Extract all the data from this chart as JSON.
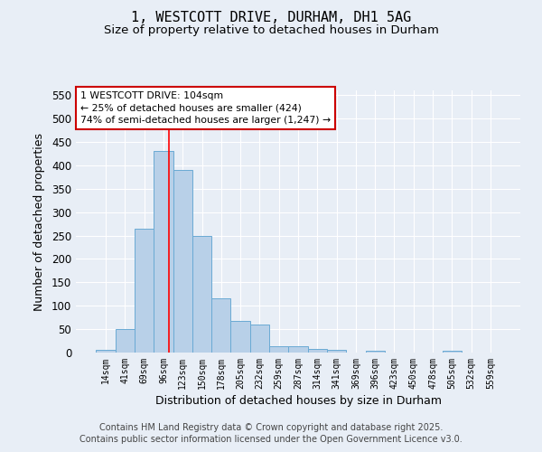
{
  "title_line1": "1, WESTCOTT DRIVE, DURHAM, DH1 5AG",
  "title_line2": "Size of property relative to detached houses in Durham",
  "xlabel": "Distribution of detached houses by size in Durham",
  "ylabel": "Number of detached properties",
  "bar_color": "#b8d0e8",
  "bar_edge_color": "#6aaad4",
  "background_color": "#e8eef6",
  "grid_color": "#ffffff",
  "categories": [
    "14sqm",
    "41sqm",
    "69sqm",
    "96sqm",
    "123sqm",
    "150sqm",
    "178sqm",
    "205sqm",
    "232sqm",
    "259sqm",
    "287sqm",
    "314sqm",
    "341sqm",
    "369sqm",
    "396sqm",
    "423sqm",
    "450sqm",
    "478sqm",
    "505sqm",
    "532sqm",
    "559sqm"
  ],
  "values": [
    5,
    50,
    265,
    430,
    390,
    250,
    115,
    68,
    60,
    13,
    13,
    8,
    5,
    0,
    3,
    0,
    0,
    0,
    3,
    0,
    0
  ],
  "ylim": [
    0,
    560
  ],
  "yticks": [
    0,
    50,
    100,
    150,
    200,
    250,
    300,
    350,
    400,
    450,
    500,
    550
  ],
  "red_line_x": 3.27,
  "annotation_text": "1 WESTCOTT DRIVE: 104sqm\n← 25% of detached houses are smaller (424)\n74% of semi-detached houses are larger (1,247) →",
  "annotation_box_color": "#ffffff",
  "annotation_border_color": "#cc0000",
  "footer_line1": "Contains HM Land Registry data © Crown copyright and database right 2025.",
  "footer_line2": "Contains public sector information licensed under the Open Government Licence v3.0.",
  "bar_width": 1.0
}
